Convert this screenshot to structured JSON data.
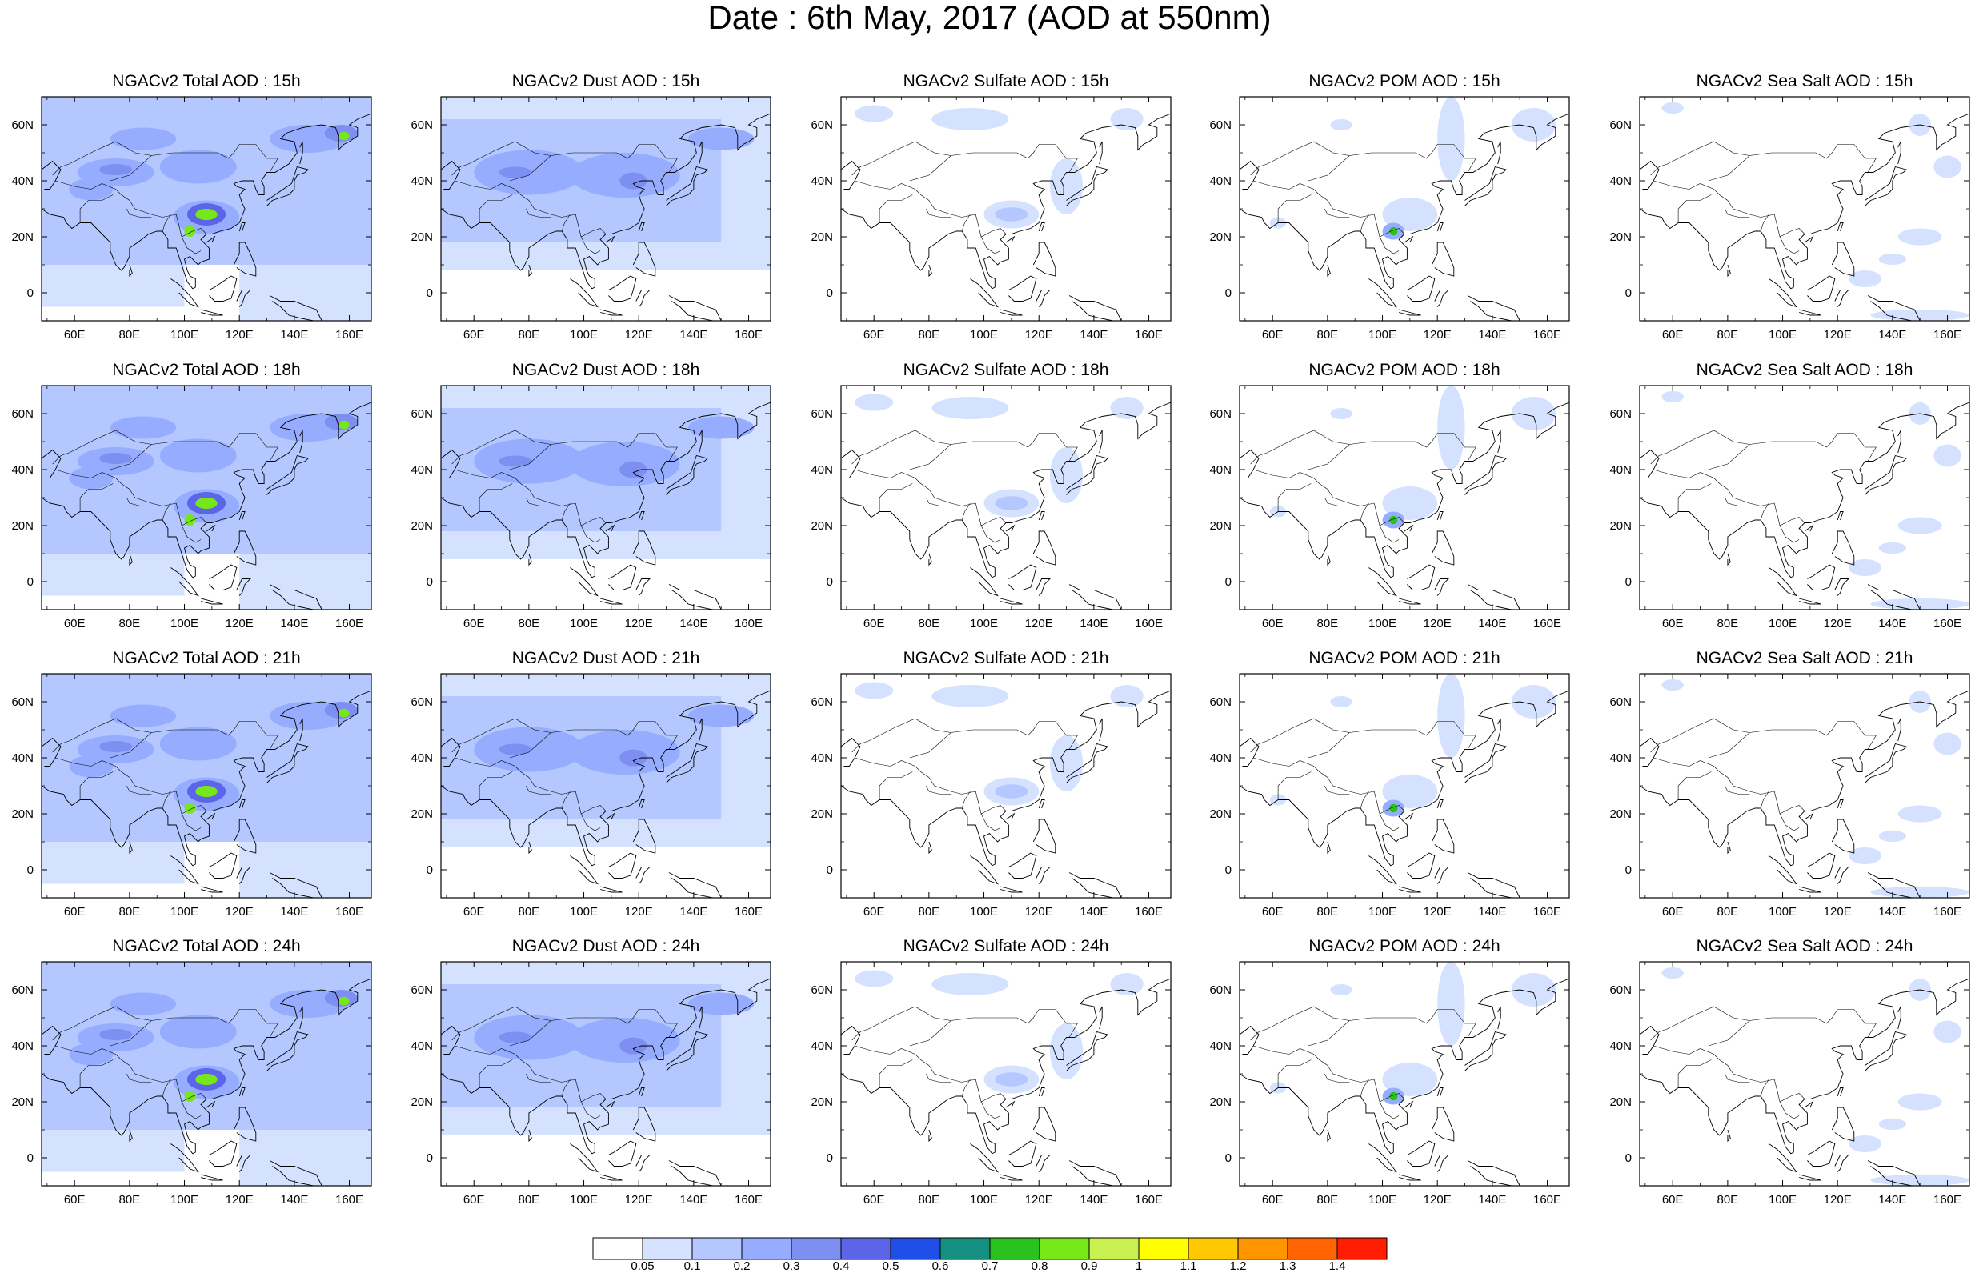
{
  "title": "Date : 6th May, 2017 (AOD at 550nm)",
  "map_axes": {
    "lon_range": [
      48,
      168
    ],
    "lat_range": [
      -10,
      70
    ],
    "lon_ticks": [
      "60E",
      "80E",
      "100E",
      "120E",
      "140E",
      "160E"
    ],
    "lat_ticks": [
      "0",
      "20N",
      "40N",
      "60N"
    ]
  },
  "panels": [
    {
      "id": "total-15h",
      "title": "NGACv2 Total AOD : 15h",
      "species": "total",
      "hour": "15h"
    },
    {
      "id": "dust-15h",
      "title": "NGACv2 Dust AOD : 15h",
      "species": "dust",
      "hour": "15h"
    },
    {
      "id": "sulfate-15h",
      "title": "NGACv2 Sulfate AOD : 15h",
      "species": "sulfate",
      "hour": "15h"
    },
    {
      "id": "pom-15h",
      "title": "NGACv2 POM AOD : 15h",
      "species": "pom",
      "hour": "15h"
    },
    {
      "id": "seasalt-15h",
      "title": "NGACv2 Sea Salt AOD : 15h",
      "species": "seasalt",
      "hour": "15h"
    },
    {
      "id": "total-18h",
      "title": "NGACv2 Total AOD : 18h",
      "species": "total",
      "hour": "18h"
    },
    {
      "id": "dust-18h",
      "title": "NGACv2 Dust AOD : 18h",
      "species": "dust",
      "hour": "18h"
    },
    {
      "id": "sulfate-18h",
      "title": "NGACv2 Sulfate AOD : 18h",
      "species": "sulfate",
      "hour": "18h"
    },
    {
      "id": "pom-18h",
      "title": "NGACv2 POM AOD : 18h",
      "species": "pom",
      "hour": "18h"
    },
    {
      "id": "seasalt-18h",
      "title": "NGACv2 Sea Salt AOD : 18h",
      "species": "seasalt",
      "hour": "18h"
    },
    {
      "id": "total-21h",
      "title": "NGACv2 Total AOD : 21h",
      "species": "total",
      "hour": "21h"
    },
    {
      "id": "dust-21h",
      "title": "NGACv2 Dust AOD : 21h",
      "species": "dust",
      "hour": "21h"
    },
    {
      "id": "sulfate-21h",
      "title": "NGACv2 Sulfate AOD : 21h",
      "species": "sulfate",
      "hour": "21h"
    },
    {
      "id": "pom-21h",
      "title": "NGACv2 POM AOD : 21h",
      "species": "pom",
      "hour": "21h"
    },
    {
      "id": "seasalt-21h",
      "title": "NGACv2 Sea Salt AOD : 21h",
      "species": "seasalt",
      "hour": "21h"
    },
    {
      "id": "total-24h",
      "title": "NGACv2 Total AOD : 24h",
      "species": "total",
      "hour": "24h"
    },
    {
      "id": "dust-24h",
      "title": "NGACv2 Dust AOD : 24h",
      "species": "dust",
      "hour": "24h"
    },
    {
      "id": "sulfate-24h",
      "title": "NGACv2 Sulfate AOD : 24h",
      "species": "sulfate",
      "hour": "24h"
    },
    {
      "id": "pom-24h",
      "title": "NGACv2 POM AOD : 24h",
      "species": "pom",
      "hour": "24h"
    },
    {
      "id": "seasalt-24h",
      "title": "NGACv2 Sea Salt  AOD : 24h",
      "species": "seasalt",
      "hour": "24h"
    }
  ],
  "colorbar": {
    "labels": [
      "0.05",
      "0.1",
      "0.2",
      "0.3",
      "0.4",
      "0.5",
      "0.6",
      "0.7",
      "0.8",
      "0.9",
      "1",
      "1.1",
      "1.2",
      "1.3",
      "1.4"
    ],
    "colors": [
      "#ffffff",
      "#d4e2ff",
      "#b4c8ff",
      "#96adff",
      "#7d8ff0",
      "#5c65e8",
      "#1f4fe6",
      "#149080",
      "#2ac31e",
      "#76e81a",
      "#c8f050",
      "#ffff00",
      "#ffc800",
      "#ff9600",
      "#ff6400",
      "#ff1e00"
    ]
  },
  "features": {
    "total": [
      {
        "type": "rect",
        "lon": [
          48,
          168
        ],
        "lat": [
          10,
          70
        ],
        "level": 2
      },
      {
        "type": "rect",
        "lon": [
          48,
          100
        ],
        "lat": [
          -5,
          10
        ],
        "level": 1
      },
      {
        "type": "rect",
        "lon": [
          120,
          168
        ],
        "lat": [
          -10,
          10
        ],
        "level": 1
      },
      {
        "type": "blob",
        "lon": 75,
        "lat": 43,
        "rx": 14,
        "ry": 5,
        "level": 3
      },
      {
        "type": "blob",
        "lon": 105,
        "lat": 45,
        "rx": 14,
        "ry": 6,
        "level": 3
      },
      {
        "type": "blob",
        "lon": 145,
        "lat": 55,
        "rx": 14,
        "ry": 5,
        "level": 3
      },
      {
        "type": "blob",
        "lon": 108,
        "lat": 27,
        "rx": 12,
        "ry": 6,
        "level": 3
      },
      {
        "type": "blob",
        "lon": 66,
        "lat": 37,
        "rx": 8,
        "ry": 4,
        "level": 3
      },
      {
        "type": "blob",
        "lon": 85,
        "lat": 55,
        "rx": 12,
        "ry": 4,
        "level": 3
      },
      {
        "type": "blob",
        "lon": 75,
        "lat": 44,
        "rx": 6,
        "ry": 2,
        "level": 4
      },
      {
        "type": "blob",
        "lon": 157,
        "lat": 57,
        "rx": 6,
        "ry": 3,
        "level": 4
      },
      {
        "type": "blob",
        "lon": 108,
        "lat": 28,
        "rx": 7,
        "ry": 4,
        "level": 5
      },
      {
        "type": "blob",
        "lon": 108,
        "lat": 28,
        "rx": 4,
        "ry": 2,
        "level": 9
      },
      {
        "type": "blob",
        "lon": 102,
        "lat": 22,
        "rx": 2,
        "ry": 2,
        "level": 9
      },
      {
        "type": "blob",
        "lon": 158,
        "lat": 56,
        "rx": 2,
        "ry": 1.5,
        "level": 9
      }
    ],
    "dust": [
      {
        "type": "rect",
        "lon": [
          48,
          168
        ],
        "lat": [
          8,
          70
        ],
        "level": 1
      },
      {
        "type": "rect",
        "lon": [
          48,
          150
        ],
        "lat": [
          18,
          62
        ],
        "level": 2
      },
      {
        "type": "blob",
        "lon": 80,
        "lat": 43,
        "rx": 20,
        "ry": 8,
        "level": 3
      },
      {
        "type": "blob",
        "lon": 115,
        "lat": 42,
        "rx": 20,
        "ry": 8,
        "level": 3
      },
      {
        "type": "blob",
        "lon": 150,
        "lat": 55,
        "rx": 12,
        "ry": 4,
        "level": 3
      },
      {
        "type": "blob",
        "lon": 75,
        "lat": 43,
        "rx": 6,
        "ry": 2,
        "level": 4
      },
      {
        "type": "blob",
        "lon": 118,
        "lat": 40,
        "rx": 5,
        "ry": 3,
        "level": 4
      }
    ],
    "sulfate": [
      {
        "type": "blob",
        "lon": 95,
        "lat": 62,
        "rx": 14,
        "ry": 4,
        "level": 1
      },
      {
        "type": "blob",
        "lon": 110,
        "lat": 28,
        "rx": 10,
        "ry": 5,
        "level": 1
      },
      {
        "type": "blob",
        "lon": 110,
        "lat": 28,
        "rx": 6,
        "ry": 2.5,
        "level": 2
      },
      {
        "type": "blob",
        "lon": 130,
        "lat": 38,
        "rx": 6,
        "ry": 10,
        "level": 1
      },
      {
        "type": "blob",
        "lon": 60,
        "lat": 64,
        "rx": 7,
        "ry": 3,
        "level": 1
      },
      {
        "type": "blob",
        "lon": 152,
        "lat": 62,
        "rx": 6,
        "ry": 4,
        "level": 1
      }
    ],
    "pom": [
      {
        "type": "blob",
        "lon": 125,
        "lat": 55,
        "rx": 5,
        "ry": 15,
        "level": 1
      },
      {
        "type": "blob",
        "lon": 155,
        "lat": 60,
        "rx": 8,
        "ry": 6,
        "level": 1
      },
      {
        "type": "blob",
        "lon": 110,
        "lat": 28,
        "rx": 10,
        "ry": 6,
        "level": 1
      },
      {
        "type": "blob",
        "lon": 104,
        "lat": 22,
        "rx": 4,
        "ry": 3,
        "level": 3
      },
      {
        "type": "blob",
        "lon": 104,
        "lat": 22,
        "rx": 1.5,
        "ry": 1.5,
        "level": 8
      },
      {
        "type": "blob",
        "lon": 85,
        "lat": 60,
        "rx": 4,
        "ry": 2,
        "level": 1
      },
      {
        "type": "blob",
        "lon": 62,
        "lat": 25,
        "rx": 3,
        "ry": 2,
        "level": 1
      }
    ],
    "seasalt": [
      {
        "type": "blob",
        "lon": 150,
        "lat": 20,
        "rx": 8,
        "ry": 3,
        "level": 1
      },
      {
        "type": "blob",
        "lon": 130,
        "lat": 5,
        "rx": 6,
        "ry": 3,
        "level": 1
      },
      {
        "type": "blob",
        "lon": 160,
        "lat": 45,
        "rx": 5,
        "ry": 4,
        "level": 1
      },
      {
        "type": "blob",
        "lon": 150,
        "lat": 60,
        "rx": 4,
        "ry": 4,
        "level": 1
      },
      {
        "type": "blob",
        "lon": 150,
        "lat": -8,
        "rx": 18,
        "ry": 2,
        "level": 1
      },
      {
        "type": "blob",
        "lon": 60,
        "lat": 66,
        "rx": 4,
        "ry": 2,
        "level": 1
      },
      {
        "type": "blob",
        "lon": 140,
        "lat": 12,
        "rx": 5,
        "ry": 2,
        "level": 1
      }
    ]
  },
  "coastlines": [
    [
      [
        48,
        44
      ],
      [
        52,
        47
      ],
      [
        55,
        44
      ],
      [
        53,
        40
      ],
      [
        51,
        37
      ],
      [
        49,
        37
      ]
    ],
    [
      [
        48,
        30
      ],
      [
        51,
        28
      ],
      [
        56,
        27
      ],
      [
        57,
        25
      ],
      [
        59,
        23
      ],
      [
        62,
        25
      ],
      [
        66,
        25
      ],
      [
        67,
        24
      ],
      [
        70,
        21
      ],
      [
        73,
        18
      ],
      [
        73,
        15
      ],
      [
        75,
        10
      ],
      [
        77,
        8
      ],
      [
        78,
        9
      ],
      [
        80,
        13
      ],
      [
        80,
        16
      ],
      [
        83,
        18
      ],
      [
        87,
        21
      ],
      [
        90,
        22
      ],
      [
        92,
        22
      ],
      [
        94,
        19
      ],
      [
        94,
        16
      ],
      [
        97,
        16
      ],
      [
        98,
        13
      ],
      [
        99,
        10
      ],
      [
        100,
        7
      ],
      [
        101,
        4
      ],
      [
        103,
        1.5
      ],
      [
        104,
        2
      ],
      [
        104,
        5
      ],
      [
        102,
        6
      ],
      [
        101,
        8
      ],
      [
        100,
        12
      ],
      [
        102,
        13
      ],
      [
        105,
        10
      ],
      [
        106,
        11
      ],
      [
        109,
        12
      ],
      [
        109,
        16
      ],
      [
        106,
        19
      ],
      [
        108,
        21
      ],
      [
        110,
        21
      ],
      [
        113,
        22
      ],
      [
        117,
        23
      ],
      [
        120,
        25
      ],
      [
        122,
        30
      ],
      [
        121,
        32
      ],
      [
        120,
        35
      ],
      [
        122,
        37
      ],
      [
        119,
        38
      ],
      [
        118,
        39
      ],
      [
        121,
        40
      ],
      [
        122,
        40
      ],
      [
        125,
        40
      ],
      [
        126,
        37
      ],
      [
        127,
        35
      ],
      [
        129,
        35
      ],
      [
        129,
        38
      ],
      [
        128,
        40
      ],
      [
        130,
        43
      ],
      [
        133,
        43
      ],
      [
        138,
        46
      ],
      [
        141,
        50
      ],
      [
        140,
        54
      ],
      [
        135,
        55
      ],
      [
        137,
        57
      ],
      [
        143,
        59
      ],
      [
        150,
        60
      ],
      [
        155,
        59
      ],
      [
        156,
        56
      ],
      [
        156,
        51
      ],
      [
        158,
        53
      ],
      [
        160,
        54
      ],
      [
        163,
        56
      ],
      [
        163,
        59
      ],
      [
        160,
        60
      ],
      [
        163,
        62
      ],
      [
        168,
        64
      ]
    ],
    [
      [
        80,
        10
      ],
      [
        81,
        7
      ],
      [
        80,
        6
      ],
      [
        80,
        8
      ]
    ],
    [
      [
        120,
        22
      ],
      [
        121,
        25
      ],
      [
        122,
        25
      ],
      [
        121,
        22
      ]
    ],
    [
      [
        108,
        18
      ],
      [
        111,
        20
      ],
      [
        110,
        18
      ]
    ],
    [
      [
        130,
        31
      ],
      [
        132,
        33
      ],
      [
        135,
        34
      ],
      [
        138,
        35
      ],
      [
        140,
        37
      ],
      [
        140,
        40
      ],
      [
        141,
        42
      ],
      [
        144,
        43
      ],
      [
        145,
        44
      ],
      [
        141,
        45
      ],
      [
        140,
        42
      ],
      [
        139,
        39
      ],
      [
        136,
        37
      ],
      [
        133,
        35
      ],
      [
        130,
        33
      ]
    ],
    [
      [
        142,
        46
      ],
      [
        143,
        50
      ],
      [
        143,
        54
      ],
      [
        142,
        52
      ]
    ],
    [
      [
        95,
        5
      ],
      [
        98,
        3
      ],
      [
        102,
        -1
      ],
      [
        105,
        -5
      ],
      [
        102,
        -4
      ],
      [
        98,
        0
      ]
    ],
    [
      [
        109,
        1
      ],
      [
        111,
        2
      ],
      [
        114,
        4
      ],
      [
        117,
        6
      ],
      [
        119,
        5
      ],
      [
        118,
        1
      ],
      [
        117,
        -2
      ],
      [
        114,
        -3
      ],
      [
        111,
        -3
      ],
      [
        109,
        -1
      ]
    ],
    [
      [
        106,
        -6
      ],
      [
        110,
        -7
      ],
      [
        114,
        -8
      ],
      [
        110,
        -8
      ],
      [
        106,
        -7
      ]
    ],
    [
      [
        119,
        -3
      ],
      [
        121,
        1
      ],
      [
        124,
        1
      ],
      [
        122,
        -1
      ],
      [
        121,
        -4
      ],
      [
        120,
        -5
      ]
    ],
    [
      [
        118,
        10
      ],
      [
        120,
        14
      ],
      [
        120,
        18
      ],
      [
        122,
        18
      ],
      [
        124,
        14
      ],
      [
        126,
        9
      ],
      [
        126,
        6
      ],
      [
        122,
        7
      ],
      [
        119,
        9
      ]
    ],
    [
      [
        131,
        -1
      ],
      [
        135,
        -3
      ],
      [
        140,
        -3
      ],
      [
        145,
        -5
      ],
      [
        148,
        -6
      ],
      [
        150,
        -10
      ],
      [
        147,
        -10
      ],
      [
        142,
        -9
      ],
      [
        138,
        -8
      ],
      [
        135,
        -5
      ],
      [
        132,
        -3
      ]
    ]
  ],
  "borders": [
    [
      [
        53,
        40
      ],
      [
        60,
        38
      ],
      [
        66,
        37
      ],
      [
        70,
        39
      ],
      [
        75,
        37
      ],
      [
        77,
        35
      ],
      [
        80,
        33
      ],
      [
        82,
        30
      ],
      [
        88,
        28
      ],
      [
        92,
        27
      ],
      [
        97,
        28
      ]
    ],
    [
      [
        73,
        40
      ],
      [
        80,
        42
      ],
      [
        88,
        49
      ],
      [
        96,
        50
      ],
      [
        104,
        50
      ],
      [
        112,
        50
      ],
      [
        116,
        48
      ],
      [
        118,
        50
      ],
      [
        120,
        53
      ],
      [
        126,
        53
      ],
      [
        130,
        48
      ],
      [
        134,
        48
      ],
      [
        131,
        43
      ]
    ],
    [
      [
        52,
        42
      ],
      [
        55,
        45
      ],
      [
        58,
        46
      ],
      [
        62,
        48
      ],
      [
        68,
        51
      ],
      [
        75,
        54
      ],
      [
        82,
        50
      ],
      [
        88,
        49
      ]
    ],
    [
      [
        97,
        28
      ],
      [
        98,
        24
      ],
      [
        99,
        20
      ],
      [
        101,
        21
      ],
      [
        103,
        22
      ],
      [
        106,
        23
      ],
      [
        108,
        21
      ]
    ],
    [
      [
        92,
        22
      ],
      [
        93,
        25
      ],
      [
        95,
        28
      ]
    ],
    [
      [
        99,
        20
      ],
      [
        101,
        16
      ],
      [
        104,
        14
      ],
      [
        106,
        15
      ]
    ],
    [
      [
        62,
        25
      ],
      [
        62,
        30
      ],
      [
        65,
        33
      ],
      [
        70,
        33
      ],
      [
        74,
        35
      ]
    ],
    [
      [
        79,
        30
      ],
      [
        80,
        28
      ],
      [
        84,
        27
      ],
      [
        88,
        27
      ]
    ]
  ]
}
